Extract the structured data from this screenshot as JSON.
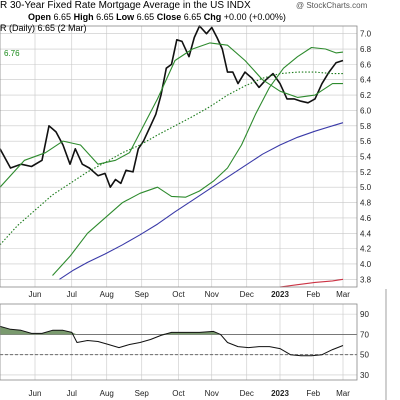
{
  "header": {
    "title": "R 30-Year Fixed Rate Mortgage Average in the US  INDX",
    "copyright": "@ StockCharts.com",
    "ohlc": {
      "open_label": "Open",
      "open": "6.65",
      "high_label": "High",
      "high": "6.65",
      "low_label": "Low",
      "low": "6.65",
      "close_label": "Close",
      "close": "6.65",
      "chg_label": "Chg",
      "chg": "+0.00 (+0.00%)"
    },
    "symbol_line": "R (Daily) 6.65 (2 Mar)",
    "ma_value": "6.76"
  },
  "colors": {
    "price": "#111111",
    "ma_green": "#2e8b2e",
    "ma_dotted": "#1a7a1a",
    "ma_blue": "#3a3aa8",
    "ma_red": "#cc3344",
    "rsi_fill": "#6b8f5e",
    "grid": "#c8c8c8"
  },
  "chart_data": [
    {
      "type": "line",
      "x_ticks": [
        "Jun",
        "Jul",
        "Aug",
        "Sep",
        "Oct",
        "Nov",
        "Dec",
        "2023",
        "Feb",
        "Mar"
      ],
      "x_tick_pos": [
        0.5,
        1.55,
        2.55,
        3.55,
        4.6,
        5.55,
        6.55,
        7.5,
        8.45,
        9.3
      ],
      "ylim": [
        3.7,
        7.1
      ],
      "y_ticks": [
        3.8,
        4.0,
        4.2,
        4.4,
        4.6,
        4.8,
        5.0,
        5.2,
        5.4,
        5.6,
        5.8,
        6.0,
        6.2,
        6.4,
        6.6,
        6.8,
        7.0
      ],
      "xlim": [
        -0.5,
        9.7
      ],
      "series": [
        {
          "key": "price",
          "style": "solid",
          "color_key": "price",
          "x": [
            -0.5,
            -0.2,
            0.1,
            0.4,
            0.7,
            0.9,
            1.1,
            1.3,
            1.5,
            1.65,
            1.85,
            2.05,
            2.3,
            2.5,
            2.65,
            2.8,
            2.95,
            3.1,
            3.3,
            3.45,
            3.6,
            3.75,
            3.95,
            4.1,
            4.25,
            4.4,
            4.55,
            4.7,
            4.9,
            5.05,
            5.2,
            5.4,
            5.55,
            5.7,
            5.85,
            6.0,
            6.15,
            6.3,
            6.5,
            6.7,
            6.9,
            7.1,
            7.3,
            7.5,
            7.7,
            7.9,
            8.1,
            8.3,
            8.5,
            8.7,
            8.9,
            9.1,
            9.3
          ],
          "values": [
            5.5,
            5.25,
            5.3,
            5.27,
            5.35,
            5.8,
            5.72,
            5.55,
            5.3,
            5.5,
            5.3,
            5.25,
            5.15,
            5.18,
            5.0,
            5.1,
            5.05,
            5.22,
            5.2,
            5.5,
            5.6,
            5.75,
            5.95,
            6.2,
            6.55,
            6.6,
            6.92,
            6.9,
            6.7,
            6.95,
            7.1,
            7.0,
            7.08,
            6.95,
            6.8,
            6.5,
            6.5,
            6.35,
            6.5,
            6.42,
            6.3,
            6.4,
            6.48,
            6.35,
            6.15,
            6.15,
            6.12,
            6.1,
            6.15,
            6.35,
            6.5,
            6.62,
            6.65
          ]
        },
        {
          "key": "ma_short",
          "style": "solid",
          "color_key": "ma_green",
          "x": [
            -0.5,
            0.2,
            0.8,
            1.3,
            1.8,
            2.3,
            2.8,
            3.2,
            3.6,
            4.0,
            4.5,
            5.0,
            5.5,
            6.0,
            6.5,
            7.0,
            7.5,
            8.0,
            8.5,
            9.0,
            9.3
          ],
          "values": [
            5.0,
            5.35,
            5.45,
            5.6,
            5.55,
            5.3,
            5.35,
            5.45,
            5.8,
            6.15,
            6.65,
            6.8,
            6.88,
            6.85,
            6.65,
            6.4,
            6.25,
            6.17,
            6.2,
            6.35,
            6.35
          ]
        },
        {
          "key": "ma_mid",
          "style": "solid",
          "color_key": "ma_green",
          "x": [
            1.0,
            1.5,
            2.0,
            2.5,
            3.0,
            3.5,
            4.0,
            4.4,
            4.8,
            5.2,
            5.6,
            6.0,
            6.4,
            6.8,
            7.2,
            7.6,
            8.0,
            8.4,
            8.8,
            9.1,
            9.3
          ],
          "values": [
            3.85,
            4.1,
            4.4,
            4.6,
            4.8,
            4.92,
            5.0,
            4.88,
            4.87,
            4.95,
            5.08,
            5.25,
            5.55,
            5.95,
            6.3,
            6.55,
            6.7,
            6.82,
            6.8,
            6.75,
            6.76
          ]
        },
        {
          "key": "ma_long",
          "style": "dotted",
          "color_key": "ma_dotted",
          "x": [
            -0.5,
            0.0,
            0.5,
            1.0,
            1.5,
            2.0,
            2.5,
            3.0,
            3.5,
            4.0,
            4.5,
            5.0,
            5.5,
            6.0,
            6.5,
            7.0,
            7.5,
            8.0,
            8.5,
            9.0,
            9.3
          ],
          "values": [
            4.25,
            4.5,
            4.7,
            4.9,
            5.05,
            5.2,
            5.32,
            5.45,
            5.55,
            5.68,
            5.8,
            5.92,
            6.05,
            6.2,
            6.32,
            6.42,
            6.48,
            6.5,
            6.5,
            6.48,
            6.48
          ]
        },
        {
          "key": "ma_blue",
          "style": "solid",
          "color_key": "ma_blue",
          "x": [
            1.2,
            1.6,
            2.0,
            2.5,
            3.0,
            3.5,
            4.0,
            4.5,
            5.0,
            5.5,
            6.0,
            6.5,
            7.0,
            7.5,
            8.0,
            8.5,
            9.0,
            9.3
          ],
          "values": [
            3.8,
            3.92,
            4.02,
            4.13,
            4.25,
            4.38,
            4.52,
            4.68,
            4.83,
            4.98,
            5.13,
            5.28,
            5.43,
            5.55,
            5.65,
            5.73,
            5.8,
            5.84
          ]
        },
        {
          "key": "ma_red",
          "style": "solid",
          "color_key": "ma_red",
          "x": [
            7.5,
            8.0,
            8.5,
            9.0,
            9.3
          ],
          "values": [
            3.7,
            3.73,
            3.76,
            3.78,
            3.8
          ]
        }
      ]
    },
    {
      "type": "line",
      "ylim": [
        25,
        100
      ],
      "y_ticks": [
        30,
        50,
        70,
        90
      ],
      "reference_lines": [
        70,
        50
      ],
      "x_ticks": [
        "Jun",
        "Jul",
        "Aug",
        "Sep",
        "Oct",
        "Nov",
        "Dec",
        "2023",
        "Feb",
        "Mar"
      ],
      "x_tick_pos": [
        0.5,
        1.55,
        2.55,
        3.55,
        4.6,
        5.55,
        6.55,
        7.5,
        8.45,
        9.3
      ],
      "xlim": [
        -0.5,
        9.7
      ],
      "series": [
        {
          "key": "rsi",
          "style": "solid",
          "color_key": "price",
          "x": [
            -0.5,
            -0.2,
            0.1,
            0.4,
            0.7,
            1.0,
            1.3,
            1.55,
            1.7,
            2.0,
            2.3,
            2.6,
            2.9,
            3.2,
            3.5,
            3.8,
            4.1,
            4.4,
            4.8,
            5.2,
            5.6,
            5.8,
            6.0,
            6.3,
            6.6,
            6.9,
            7.2,
            7.5,
            7.8,
            8.1,
            8.4,
            8.7,
            9.0,
            9.3
          ],
          "values": [
            78,
            75,
            74,
            71,
            71,
            74,
            74,
            72,
            62,
            64,
            63,
            60,
            57,
            60,
            62,
            65,
            69,
            72,
            72,
            72,
            73,
            70,
            62,
            58,
            57,
            58,
            58,
            56,
            50,
            49,
            49,
            50,
            55,
            59
          ]
        }
      ]
    }
  ]
}
